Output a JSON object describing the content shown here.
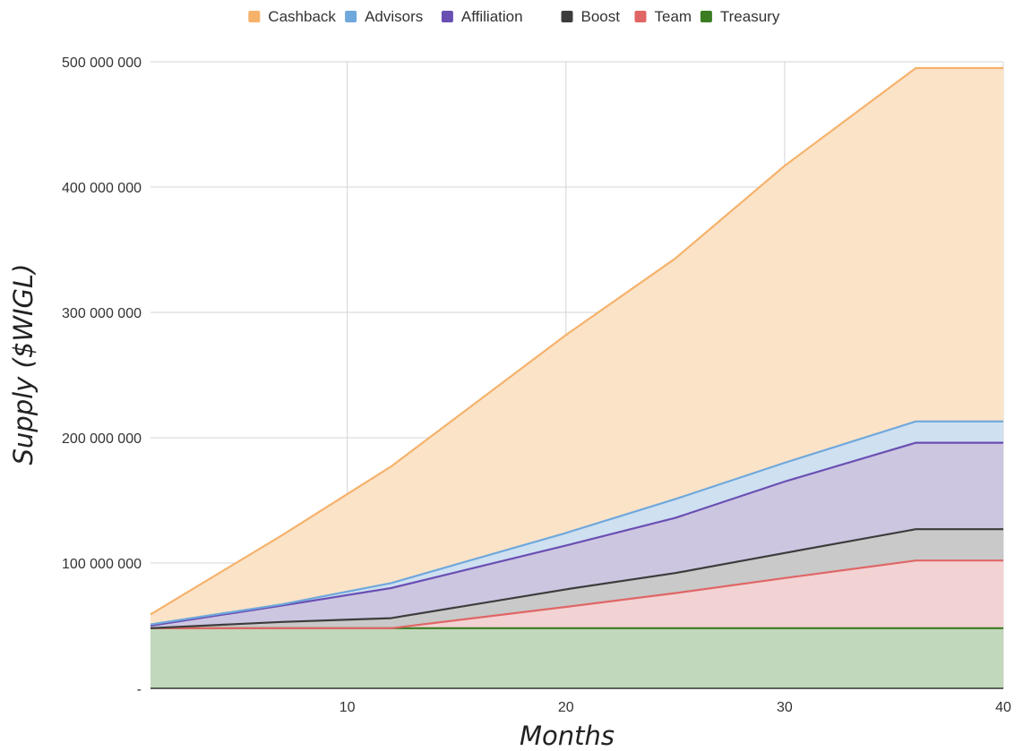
{
  "chart_data": {
    "type": "area",
    "stacked": true,
    "title": "",
    "xlabel": "Months",
    "ylabel": "Supply ($WIGL)",
    "xlim": [
      1,
      40
    ],
    "ylim": [
      0,
      500000000
    ],
    "x_ticks": [
      10,
      20,
      30,
      40
    ],
    "x_tick_labels": [
      "10",
      "20",
      "30",
      "40"
    ],
    "y_ticks": [
      0,
      100000000,
      200000000,
      300000000,
      400000000,
      500000000
    ],
    "y_tick_labels": [
      "-",
      "100 000 000",
      "200 000 000",
      "300 000 000",
      "400 000 000",
      "500 000 000"
    ],
    "grid": true,
    "legend_position": "top",
    "legend_order": [
      "Cashback",
      "Advisors",
      "Affiliation",
      "Boost",
      "Team",
      "Treasury"
    ],
    "x": [
      1,
      7,
      12,
      20,
      25,
      30,
      36,
      40
    ],
    "series": [
      {
        "name": "Treasury",
        "color": "#3a7d22",
        "fill": "#c2d8bc",
        "values": [
          48000000,
          48000000,
          48000000,
          48000000,
          48000000,
          48000000,
          48000000,
          48000000
        ]
      },
      {
        "name": "Team",
        "color": "#e06666",
        "fill": "#f3d2d3",
        "values": [
          0,
          0,
          0,
          17000000,
          28000000,
          40000000,
          54000000,
          54000000
        ]
      },
      {
        "name": "Boost",
        "color": "#3c3c3c",
        "fill": "#c9c9c9",
        "values": [
          0,
          5000000,
          8000000,
          14000000,
          16000000,
          20000000,
          25000000,
          25000000
        ]
      },
      {
        "name": "Affiliation",
        "color": "#6a4fb3",
        "fill": "#cdc6e1",
        "values": [
          2000000,
          13000000,
          24000000,
          35000000,
          44000000,
          57000000,
          69000000,
          69000000
        ]
      },
      {
        "name": "Advisors",
        "color": "#6fa8dc",
        "fill": "#cfe0f1",
        "values": [
          1000000,
          1000000,
          4000000,
          10000000,
          15000000,
          15000000,
          17000000,
          17000000
        ]
      },
      {
        "name": "Cashback",
        "color": "#f6b26b",
        "fill": "#fbe3c8",
        "values": [
          8000000,
          55000000,
          93000000,
          158000000,
          192000000,
          237000000,
          282000000,
          282000000
        ]
      }
    ]
  }
}
